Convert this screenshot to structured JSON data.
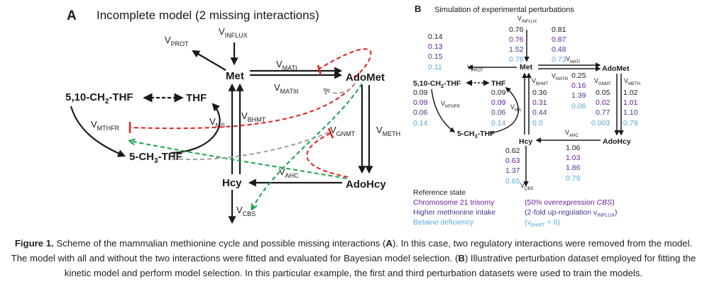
{
  "colors": {
    "text": "#1a1a1a",
    "red_dashed": "#e0201e",
    "green_dashed": "#17a24b",
    "gray_dashed": "#9e9e9e",
    "reference": "#1a1a1a",
    "trisomy": "#6a1b9a",
    "methionine": "#3f3a8f",
    "betaine": "#5aa6d6"
  },
  "panel_a": {
    "letter": "A",
    "title": "Incomplete model (2 missing interactions)",
    "nodes": {
      "met": "Met",
      "adomet": "AdoMet",
      "adohcy": "AdoHcy",
      "hcy": "Hcy",
      "thf": "THF",
      "methylene_thf": [
        "5,10-CH",
        "2",
        "-THF"
      ],
      "methyl_thf": [
        "5-CH",
        "3",
        "-THF"
      ]
    },
    "fluxes": {
      "influx": [
        "V",
        "INFLUX"
      ],
      "prot": [
        "V",
        "PROT"
      ],
      "mati": [
        "V",
        "MATI"
      ],
      "matiii": [
        "V",
        "MATIII"
      ],
      "bhmt": [
        "V",
        "BHMT"
      ],
      "ms": [
        "V",
        "MS"
      ],
      "mthfr": [
        "V",
        "MTHFR"
      ],
      "gnmt": [
        "V",
        "GNMT"
      ],
      "meth": [
        "V",
        "METH"
      ],
      "ahc": [
        "V",
        "AHC"
      ],
      "cbs": [
        "V",
        "CBS"
      ]
    }
  },
  "panel_b": {
    "letter": "B",
    "title": "Simulation of experimental perturbations",
    "nodes": {
      "met": "Met",
      "adomet": "AdoMet",
      "adohcy": "AdoHcy",
      "hcy": "Hcy",
      "thf": "THF",
      "methylene_thf": [
        "5,10-CH",
        "2",
        "-THF"
      ],
      "methyl_thf": [
        "5-CH",
        "3",
        "-THF"
      ]
    },
    "fluxes": {
      "influx": [
        "V",
        "INFLUX"
      ],
      "prot": [
        "V",
        "PROT"
      ],
      "mati": [
        "V",
        "MATI"
      ],
      "matiii": [
        "V",
        "MATIII"
      ],
      "bhmt": [
        "V",
        "BHMT"
      ],
      "ms": [
        "V",
        "MS"
      ],
      "mthfr": [
        "V",
        "MTHFR"
      ],
      "gnmt": [
        "V",
        "GNMT"
      ],
      "meth": [
        "V",
        "METH"
      ],
      "ahc": [
        "V",
        "AHC"
      ],
      "cbs": [
        "V",
        "CBS"
      ]
    },
    "values": {
      "prot": [
        "0.14",
        "0.13",
        "0.15",
        "0.11"
      ],
      "influx": [
        "0.76",
        "0.76",
        "1.52",
        "0.76"
      ],
      "mati": [
        "0.81",
        "0.87",
        "0.48",
        "0.73"
      ],
      "matiii": [
        "0.25",
        "0.16",
        "1.39",
        "0.06"
      ],
      "bhmt": [
        "0.36",
        "0.31",
        "0.44",
        "0.0"
      ],
      "ms": [
        "0.09",
        "0.09",
        "0.06",
        "0.14"
      ],
      "mthfr": [
        "0.09",
        "0.09",
        "0.06",
        "0.14"
      ],
      "gnmt": [
        "0.05",
        "0.02",
        "0.77",
        "0.003"
      ],
      "meth": [
        "1.02",
        "1.01",
        "1.10",
        "0.79"
      ],
      "ahc": [
        "1.06",
        "1.03",
        "1.86",
        "0.79"
      ],
      "cbs": [
        "0.62",
        "0.63",
        "1.37",
        "0.65"
      ]
    },
    "legend": [
      {
        "name": "Reference state",
        "note": null
      },
      {
        "name": "Chromosome 21 trisomy",
        "note": [
          "(50% overexpression ",
          "CBS",
          ")"
        ]
      },
      {
        "name": "Higher methionine intake",
        "note": [
          "(2-fold up-regulation v",
          "INFLUX",
          ")"
        ]
      },
      {
        "name": "Betaine deficiency",
        "note": [
          "(v",
          "BHMT",
          " = 0)"
        ]
      }
    ]
  },
  "caption": {
    "lead": "Figure 1.",
    "parts": [
      " Scheme of the mammalian methionine cycle and possible missing interactions (",
      "A",
      "). In this case, two regulatory interactions were removed from the model. The model with all and without the two interactions were fitted and evaluated for Bayesian model selection. (",
      "B",
      ") Illustrative perturbation dataset employed for fitting the kinetic model and perform model selection. In this particular example, the first and third perturbation datasets were used to train the models."
    ]
  }
}
